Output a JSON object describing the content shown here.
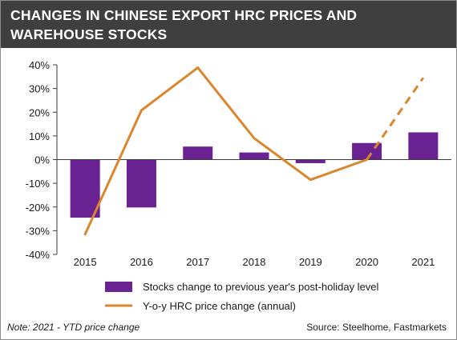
{
  "title": {
    "line1": "CHANGES IN CHINESE EXPORT HRC PRICES AND",
    "line2": "WAREHOUSE STOCKS"
  },
  "note": "Note: 2021 - YTD price change",
  "source": "Source: Steelhome, Fastmarkets",
  "colors": {
    "header_bg": "#3f3f3f",
    "bar": "#6a2293",
    "line": "#d9862f",
    "axis": "#3a3a3a"
  },
  "chart_data": {
    "type": "bar",
    "categories": [
      "2015",
      "2016",
      "2017",
      "2018",
      "2019",
      "2020",
      "2021"
    ],
    "ylim": [
      -40,
      40
    ],
    "yticks": [
      -40,
      -30,
      -20,
      -10,
      0,
      10,
      20,
      30,
      40
    ],
    "ytick_labels": [
      "-40%",
      "-30%",
      "-20%",
      "-10%",
      "0%",
      "10%",
      "20%",
      "30%",
      "40%"
    ],
    "grid": false,
    "legend_position": "bottom",
    "series": [
      {
        "name": "Stocks change to previous year's post-holiday level",
        "type": "bar",
        "values": [
          -24.5,
          -20.2,
          5.5,
          3.0,
          -1.5,
          7.0,
          11.5
        ]
      },
      {
        "name": "Y-o-y HRC price change (annual)",
        "type": "line",
        "values": [
          -31.5,
          20.8,
          38.8,
          9.0,
          -8.5,
          0.0,
          34.5
        ],
        "dashed_from_index": 5
      }
    ]
  }
}
